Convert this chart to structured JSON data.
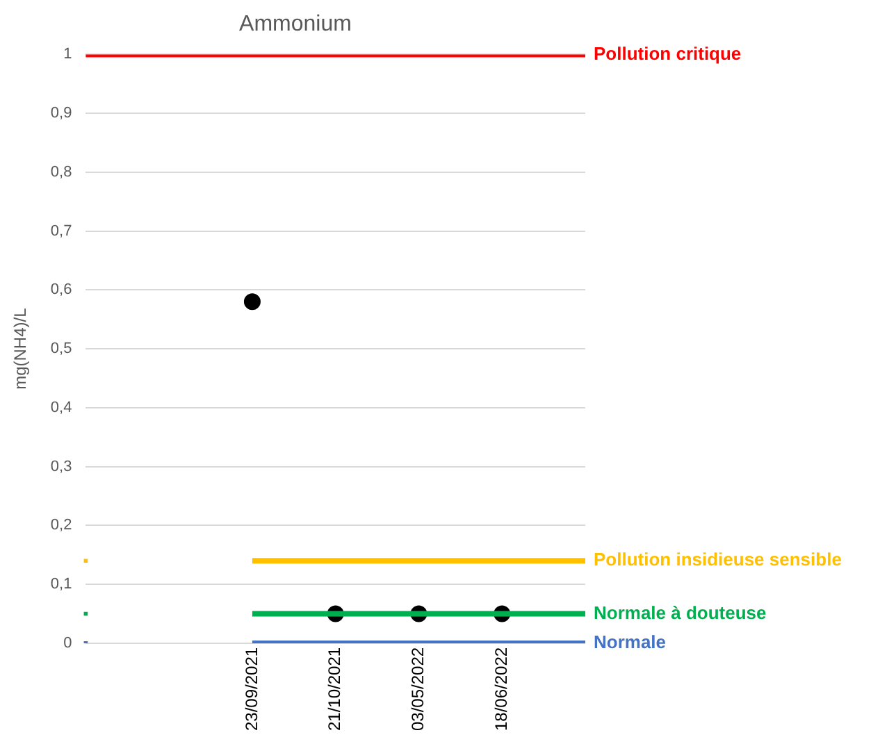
{
  "chart_data": {
    "type": "line",
    "title": "Ammonium",
    "ylabel": "mg(NH4)/L",
    "categories": [
      null,
      null,
      "23/09/2021",
      "21/10/2021",
      "03/05/2022",
      "18/06/2022",
      null
    ],
    "series": [
      {
        "name": "Pollution critique",
        "color": "#ff0000",
        "marker": "none",
        "values": [
          1,
          1,
          1,
          1,
          1,
          1,
          1
        ]
      },
      {
        "name": "Pollution insidieuse sensible",
        "color": "#ffc000",
        "marker": "none",
        "values": [
          0.14,
          null,
          0.14,
          0.14,
          0.14,
          0.14,
          0.14
        ]
      },
      {
        "name": "Normale à douteuse",
        "color": "#00b050",
        "marker": "none",
        "values": [
          0.05,
          null,
          0.05,
          0.05,
          0.05,
          0.05,
          0.05
        ]
      },
      {
        "name": "Normale",
        "color": "#4472c4",
        "marker": "none",
        "values": [
          0,
          null,
          0,
          0,
          0,
          0,
          0
        ]
      },
      {
        "color": "#000000",
        "type": "scatter",
        "marker": "circle",
        "values": [
          null,
          null,
          0.58,
          0.05,
          0.05,
          0.05,
          null
        ]
      }
    ],
    "ylim": [
      0,
      1
    ],
    "yticks": [
      0,
      {
        "value": 0.1,
        "label": "0,1"
      },
      {
        "value": 0.2,
        "label": "0,2"
      },
      {
        "value": 0.3,
        "label": "0,3"
      },
      {
        "value": 0.4,
        "label": "0,4"
      },
      {
        "value": 0.5,
        "label": "0,5"
      },
      {
        "value": 0.6,
        "label": "0,6"
      },
      {
        "value": 0.7,
        "label": "0,7"
      },
      {
        "value": 0.8,
        "label": "0,8"
      },
      {
        "value": 0.9,
        "label": "0,9"
      },
      1
    ],
    "grid": "y"
  }
}
